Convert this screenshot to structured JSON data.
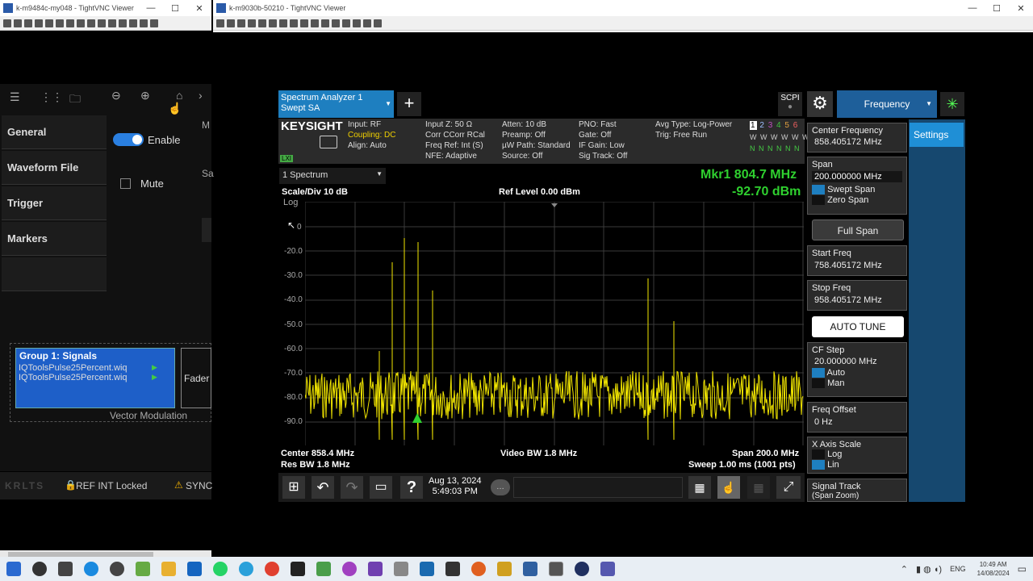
{
  "left_window": {
    "title": "k-m9484c-my048 - TightVNC Viewer",
    "min": "—",
    "max": "☐",
    "close": "✕"
  },
  "right_window": {
    "title": "k-m9030b-50210 - TightVNC Viewer",
    "min": "—",
    "max": "☐",
    "close": "✕"
  },
  "left_app": {
    "nav": [
      "General",
      "Waveform File",
      "Trigger",
      "Markers"
    ],
    "enable_label": "Enable",
    "mute_label": "Mute",
    "cut1": "M",
    "cut2": "Sa",
    "group_title": "Group 1: Signals",
    "files": [
      "IQToolsPulse25Percent.wiq",
      "IQToolsPulse25Percent.wiq"
    ],
    "fader": "Fader",
    "vector_mod": "Vector Modulation",
    "status": {
      "left": "KRLTS",
      "ref": "REF INT  Locked",
      "sync": "SYNC"
    }
  },
  "sa": {
    "tab_title": "Spectrum Analyzer 1",
    "tab_sub": "Swept SA",
    "add": "+",
    "scpi": "SCPI",
    "menu": "Frequency",
    "settings": "Settings",
    "brand": "KEYSIGHT",
    "lxi": "LXI",
    "info1": [
      "Input: RF",
      "Coupling: DC",
      "Align: Auto"
    ],
    "info2": [
      "Input Z: 50 Ω",
      "Corr CCorr RCal",
      "Freq Ref: Int (S)",
      "NFE: Adaptive"
    ],
    "info3": [
      "Atten: 10 dB",
      "Preamp: Off",
      "µW Path: Standard",
      "Source: Off"
    ],
    "info4": [
      "PNO: Fast",
      "Gate: Off",
      "IF Gain: Low",
      "Sig Track: Off"
    ],
    "info5": [
      "Avg Type: Log-Power",
      "Trig: Free Run"
    ],
    "traces": [
      "1",
      "2",
      "3",
      "4",
      "5",
      "6"
    ],
    "trace_w": "W W W W W W",
    "trace_n": "N N N N N N",
    "view": "1 Spectrum",
    "scale": "Scale/Div 10 dB",
    "ref_level": "Ref Level 0.00 dBm",
    "log": "Log",
    "mkr_label": "Mkr1  804.7 MHz",
    "mkr_val": "-92.70 dBm",
    "y_ticks": [
      "0",
      "-20.0",
      "-30.0",
      "-40.0",
      "-50.0",
      "-60.0",
      "-70.0",
      "-80.0",
      "-90.0"
    ],
    "center": "Center 858.4 MHz",
    "res_bw": "Res BW 1.8 MHz",
    "video_bw": "Video BW 1.8 MHz",
    "span": "Span 200.0 MHz",
    "sweep": "Sweep 1.00 ms (1001 pts)",
    "date": "Aug 13, 2024",
    "time": "5:49:03 PM",
    "help": "?",
    "right": {
      "center_freq_label": "Center Frequency",
      "center_freq": "858.405172 MHz",
      "span_label": "Span",
      "span_val": "200.000000 MHz",
      "swept_span": "Swept Span",
      "zero_span": "Zero Span",
      "full_span": "Full Span",
      "start_label": "Start Freq",
      "start_val": "758.405172 MHz",
      "stop_label": "Stop Freq",
      "stop_val": "958.405172 MHz",
      "auto_tune": "AUTO TUNE",
      "cf_step_label": "CF Step",
      "cf_step_val": "20.000000 MHz",
      "auto": "Auto",
      "man": "Man",
      "offset_label": "Freq Offset",
      "offset_val": "0 Hz",
      "xscale_label": "X Axis Scale",
      "log": "Log",
      "lin": "Lin",
      "sig_track": "Signal Track",
      "span_zoom": "(Span Zoom)"
    }
  },
  "taskbar": {
    "lang": "ENG",
    "time": "10:49 AM",
    "date": "14/08/2024"
  }
}
